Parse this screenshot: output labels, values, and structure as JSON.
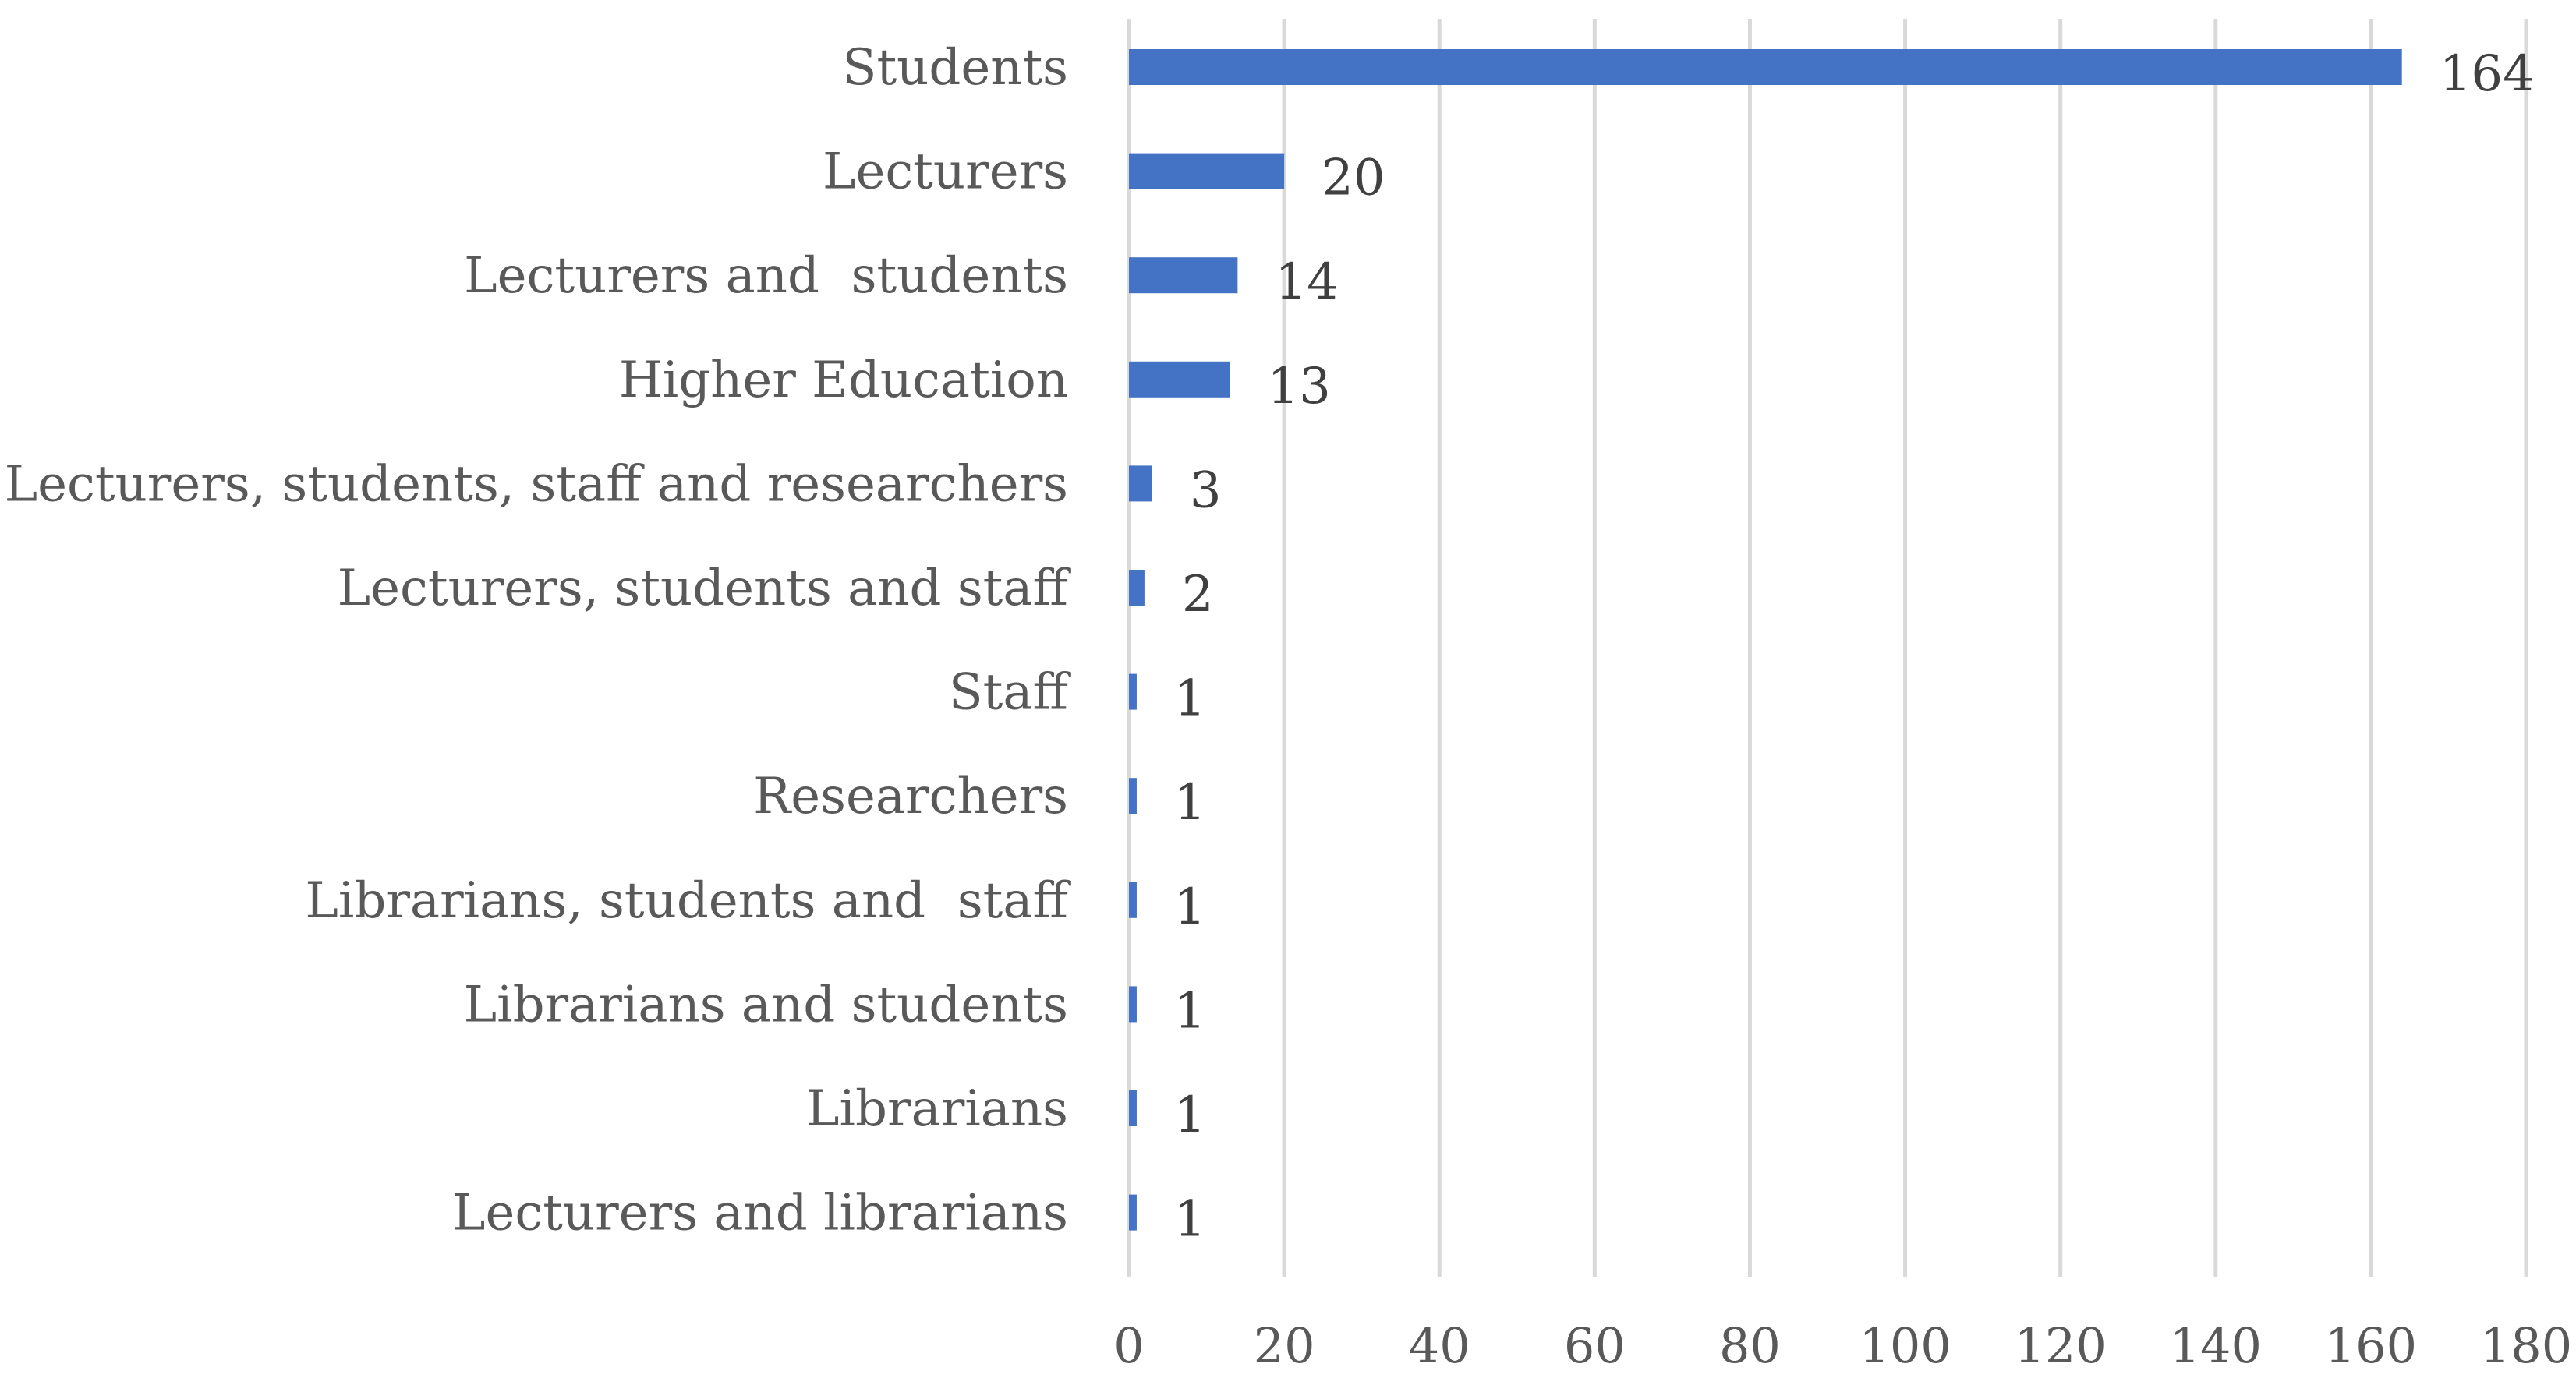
{
  "chart_data": {
    "type": "bar",
    "orientation": "horizontal",
    "categories": [
      "Students",
      "Lecturers",
      "Lecturers and  students",
      "Higher Education",
      "Lecturers, students, staff and researchers",
      "Lecturers, students and staff",
      "Staff",
      "Researchers",
      "Librarians, students and  staff",
      "Librarians and students",
      "Librarians",
      "Lecturers and librarians"
    ],
    "values": [
      164,
      20,
      14,
      13,
      3,
      2,
      1,
      1,
      1,
      1,
      1,
      1
    ],
    "data_labels": [
      "164",
      "20",
      "14",
      "13",
      "3",
      "2",
      "1",
      "1",
      "1",
      "1",
      "1",
      "1"
    ],
    "xlim": [
      0,
      180
    ],
    "xticks": [
      0,
      20,
      40,
      60,
      80,
      100,
      120,
      140,
      160,
      180
    ],
    "xtick_labels": [
      "0",
      "20",
      "40",
      "60",
      "80",
      "100",
      "120",
      "140",
      "160",
      "180"
    ],
    "grid": "vertical",
    "legend": "none",
    "bar_color": "#4472c4",
    "grid_color": "#d9d9d9",
    "text_color": "#595959"
  }
}
